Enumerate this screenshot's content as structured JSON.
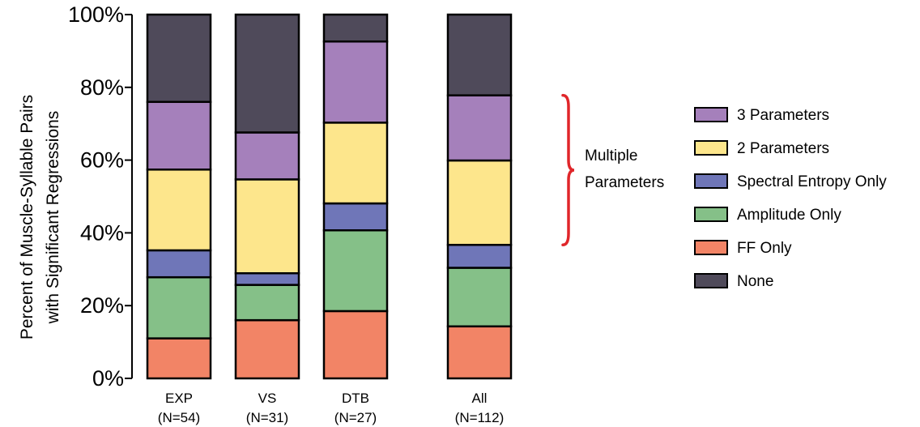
{
  "chart_data": {
    "type": "bar",
    "stacked": true,
    "categories": [
      {
        "name": "EXP",
        "n": "(N=54)"
      },
      {
        "name": "VS",
        "n": "(N=31)"
      },
      {
        "name": "DTB",
        "n": "(N=27)"
      },
      {
        "name": "All",
        "n": "(N=112)"
      }
    ],
    "series": [
      {
        "name": "FF Only",
        "color": "#f28466",
        "values": [
          11,
          16,
          18.5,
          14.3
        ]
      },
      {
        "name": "Amplitude Only",
        "color": "#85c088",
        "values": [
          16.8,
          9.7,
          22.2,
          16.1
        ]
      },
      {
        "name": "Spectral Entropy Only",
        "color": "#6f76b8",
        "values": [
          7.4,
          3.2,
          7.4,
          6.3
        ]
      },
      {
        "name": "2 Parameters",
        "color": "#fde68c",
        "values": [
          22.2,
          25.8,
          22.2,
          23.2
        ]
      },
      {
        "name": "3 Parameters",
        "color": "#a580bb",
        "values": [
          18.6,
          12.9,
          22.3,
          17.9
        ]
      },
      {
        "name": "None",
        "color": "#4f4a5a",
        "values": [
          24,
          32.4,
          7.4,
          22.2
        ]
      }
    ],
    "legend_order": [
      "3 Parameters",
      "2 Parameters",
      "Spectral Entropy Only",
      "Amplitude Only",
      "FF Only",
      "None"
    ],
    "legend_position": "right",
    "ylabel_lines": [
      "Percent of Muscle-Syllable Pairs",
      "with Significant Regressions"
    ],
    "yticks": [
      "0%",
      "20%",
      "40%",
      "60%",
      "80%",
      "100%"
    ],
    "ylim": [
      0,
      100
    ],
    "annotation": {
      "lines": [
        "Multiple",
        "Parameters"
      ],
      "bracket_color": "#e0262a",
      "spans_series": [
        "2 Parameters",
        "3 Parameters"
      ],
      "category": "All"
    }
  }
}
